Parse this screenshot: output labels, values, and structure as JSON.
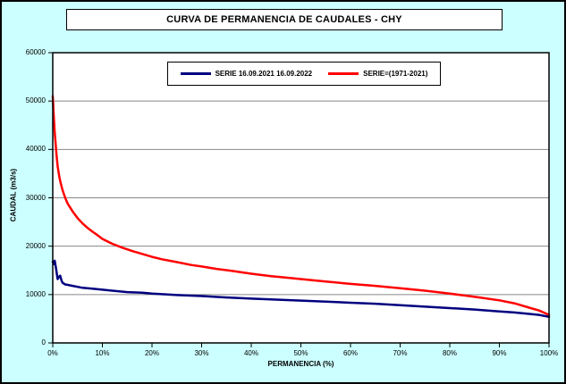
{
  "window": {
    "background_color": "#CCFFFF",
    "border_color": "#000000"
  },
  "chart_data": {
    "type": "line",
    "title": "CURVA DE PERMANENCIA DE CAUDALES - CHY",
    "xlabel": "PERMANENCIA (%)",
    "ylabel": "CAUDAL (m3/s)",
    "xlim": [
      0,
      100
    ],
    "ylim": [
      0,
      60000
    ],
    "grid": "horizontal",
    "gridline_color": "#888888",
    "plot_background": "#FFFFFF",
    "legend_position": "top-center-inside",
    "xticks": {
      "values": [
        0,
        10,
        20,
        30,
        40,
        50,
        60,
        70,
        80,
        90,
        100
      ],
      "labels": [
        "0%",
        "10%",
        "20%",
        "30%",
        "40%",
        "50%",
        "60%",
        "70%",
        "80%",
        "90%",
        "100%"
      ]
    },
    "yticks": {
      "values": [
        0,
        10000,
        20000,
        30000,
        40000,
        50000,
        60000
      ],
      "labels": [
        "0",
        "10000",
        "20000",
        "30000",
        "40000",
        "50000",
        "60000"
      ]
    },
    "series": [
      {
        "name": "SERIE 16.09.2021 16.09.2022",
        "color": "#00007F",
        "points": [
          [
            0,
            16800
          ],
          [
            0.2,
            16300
          ],
          [
            0.4,
            17000
          ],
          [
            0.6,
            15800
          ],
          [
            0.8,
            14500
          ],
          [
            1,
            13200
          ],
          [
            1.2,
            13600
          ],
          [
            1.5,
            13900
          ],
          [
            1.8,
            12800
          ],
          [
            2,
            12400
          ],
          [
            2.5,
            12100
          ],
          [
            3,
            12000
          ],
          [
            4,
            11800
          ],
          [
            5,
            11600
          ],
          [
            6,
            11400
          ],
          [
            8,
            11200
          ],
          [
            10,
            11000
          ],
          [
            12,
            10800
          ],
          [
            15,
            10500
          ],
          [
            18,
            10400
          ],
          [
            20,
            10200
          ],
          [
            25,
            9900
          ],
          [
            30,
            9700
          ],
          [
            35,
            9400
          ],
          [
            40,
            9150
          ],
          [
            45,
            8950
          ],
          [
            50,
            8750
          ],
          [
            55,
            8550
          ],
          [
            60,
            8300
          ],
          [
            65,
            8100
          ],
          [
            70,
            7800
          ],
          [
            75,
            7500
          ],
          [
            80,
            7200
          ],
          [
            85,
            6900
          ],
          [
            90,
            6500
          ],
          [
            93,
            6300
          ],
          [
            96,
            6000
          ],
          [
            98,
            5800
          ],
          [
            100,
            5400
          ]
        ]
      },
      {
        "name": "SERIE=(1971-2021)",
        "color": "#FF0000",
        "points": [
          [
            0,
            51000
          ],
          [
            0.2,
            47000
          ],
          [
            0.4,
            43500
          ],
          [
            0.6,
            41000
          ],
          [
            0.8,
            38500
          ],
          [
            1,
            36500
          ],
          [
            1.3,
            34500
          ],
          [
            1.6,
            33000
          ],
          [
            2,
            31500
          ],
          [
            2.5,
            30000
          ],
          [
            3,
            28800
          ],
          [
            3.5,
            28000
          ],
          [
            4,
            27200
          ],
          [
            5,
            25800
          ],
          [
            6,
            24700
          ],
          [
            7,
            23800
          ],
          [
            8,
            23000
          ],
          [
            9,
            22300
          ],
          [
            10,
            21500
          ],
          [
            11,
            21000
          ],
          [
            12,
            20500
          ],
          [
            14,
            19700
          ],
          [
            16,
            19000
          ],
          [
            18,
            18400
          ],
          [
            20,
            17800
          ],
          [
            22,
            17300
          ],
          [
            25,
            16700
          ],
          [
            28,
            16100
          ],
          [
            30,
            15800
          ],
          [
            33,
            15300
          ],
          [
            36,
            14900
          ],
          [
            40,
            14300
          ],
          [
            44,
            13800
          ],
          [
            48,
            13400
          ],
          [
            50,
            13200
          ],
          [
            55,
            12700
          ],
          [
            60,
            12200
          ],
          [
            65,
            11800
          ],
          [
            70,
            11300
          ],
          [
            75,
            10800
          ],
          [
            80,
            10200
          ],
          [
            83,
            9800
          ],
          [
            86,
            9400
          ],
          [
            90,
            8800
          ],
          [
            93,
            8200
          ],
          [
            96,
            7300
          ],
          [
            98,
            6700
          ],
          [
            100,
            5800
          ]
        ]
      }
    ]
  }
}
